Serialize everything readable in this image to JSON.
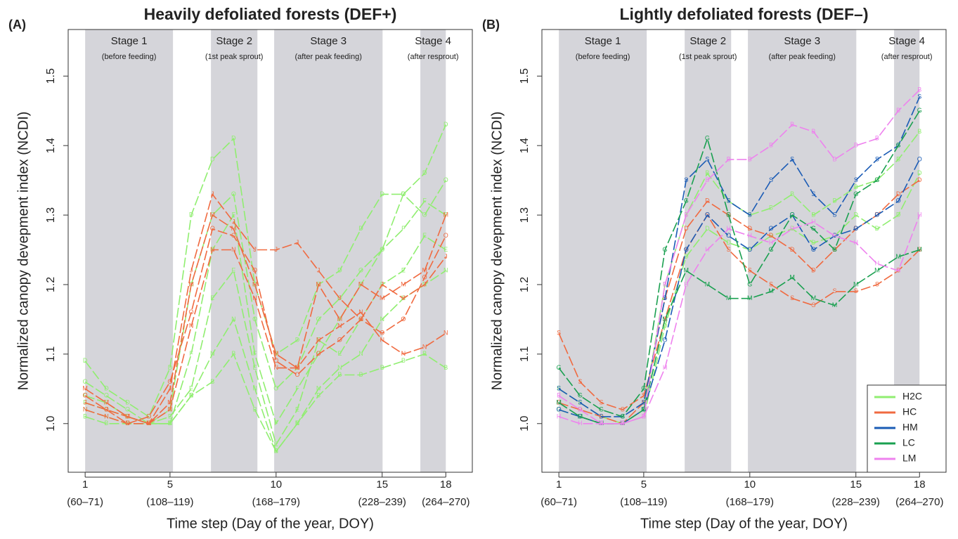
{
  "chart_data": [
    {
      "type": "line",
      "panel": "(A)",
      "title": "Heavily defoliated forests (DEF+)",
      "xlabel": "Time step (Day of the year, DOY)",
      "ylabel": "Normalized canopy devepment index (NCDI)",
      "x": [
        1,
        2,
        3,
        4,
        5,
        6,
        7,
        8,
        9,
        10,
        11,
        12,
        13,
        14,
        15,
        16,
        17,
        18
      ],
      "xlim": [
        0.2,
        19.25
      ],
      "ylim": [
        0.93,
        1.567
      ],
      "xticks": [
        1,
        5,
        10,
        15,
        18
      ],
      "xtick_sublabels": [
        "(60–71)",
        "(108–119)",
        "(168–179)",
        "(228–239)",
        "(264–270)"
      ],
      "yticks": [
        {
          "value": 1.0,
          "label": "1.0"
        },
        {
          "value": 1.1,
          "label": "1.1"
        },
        {
          "value": 1.2,
          "label": "1.2"
        },
        {
          "value": 1.3,
          "label": "1.3"
        },
        {
          "value": 1.4,
          "label": "1.4"
        },
        {
          "value": 1.5,
          "label": "1.5"
        }
      ],
      "stage_color": "#d5d5da",
      "stages": [
        {
          "label": "Stage 1",
          "note": "(before feeding)",
          "start": 1,
          "end": 5.14
        },
        {
          "label": "Stage 2",
          "note": "(1st peak sprout)",
          "start": 6.93,
          "end": 9.12
        },
        {
          "label": "Stage 3",
          "note": "(after peak feeding)",
          "start": 9.91,
          "end": 15.02
        },
        {
          "label": "Stage 4",
          "note": "(after resprout)",
          "start": 16.8,
          "end": 18
        }
      ],
      "series": [
        {
          "name": "H2C",
          "color": "#90ee70",
          "lines": [
            {
              "site": "D",
              "values": [
                1.09,
                1.05,
                1.03,
                1.01,
                1.08,
                1.3,
                1.38,
                1.41,
                1.2,
                1.1,
                1.12,
                1.2,
                1.22,
                1.28,
                1.33,
                1.33,
                1.36,
                1.43
              ]
            },
            {
              "site": "O",
              "values": [
                1.06,
                1.04,
                1.02,
                1.0,
                1.02,
                1.2,
                1.3,
                1.33,
                1.15,
                1.05,
                1.08,
                1.15,
                1.18,
                1.22,
                1.25,
                1.33,
                1.3,
                1.35
              ]
            },
            {
              "site": "F",
              "values": [
                1.04,
                1.03,
                1.01,
                1.0,
                1.0,
                1.1,
                1.25,
                1.3,
                1.1,
                1.0,
                1.05,
                1.1,
                1.15,
                1.2,
                1.25,
                1.28,
                1.32,
                1.3
              ]
            },
            {
              "site": "E",
              "values": [
                1.03,
                1.02,
                1.01,
                1.0,
                1.01,
                1.05,
                1.18,
                1.22,
                1.08,
                0.97,
                1.02,
                1.12,
                1.1,
                1.15,
                1.2,
                1.22,
                1.27,
                1.25
              ]
            },
            {
              "site": "N",
              "values": [
                1.02,
                1.01,
                1.0,
                1.0,
                1.0,
                1.04,
                1.1,
                1.15,
                1.05,
                0.96,
                1.0,
                1.05,
                1.08,
                1.1,
                1.15,
                1.18,
                1.2,
                1.22
              ]
            },
            {
              "site": "B",
              "values": [
                1.01,
                1.0,
                1.0,
                1.0,
                1.0,
                1.04,
                1.06,
                1.1,
                1.02,
                0.96,
                1.0,
                1.04,
                1.07,
                1.07,
                1.08,
                1.09,
                1.1,
                1.08
              ]
            }
          ]
        },
        {
          "name": "HC",
          "color": "#f06a40",
          "lines": [
            {
              "site": "M",
              "values": [
                1.05,
                1.03,
                1.01,
                1.0,
                1.03,
                1.2,
                1.3,
                1.28,
                1.2,
                1.1,
                1.08,
                1.2,
                1.15,
                1.2,
                1.18,
                1.2,
                1.22,
                1.3
              ]
            },
            {
              "site": "J",
              "values": [
                1.03,
                1.02,
                1.01,
                1.0,
                1.05,
                1.22,
                1.33,
                1.29,
                1.25,
                1.25,
                1.26,
                1.22,
                1.18,
                1.15,
                1.2,
                1.18,
                1.2,
                1.24
              ]
            },
            {
              "site": "O",
              "values": [
                1.04,
                1.02,
                1.0,
                1.01,
                1.06,
                1.16,
                1.28,
                1.27,
                1.22,
                1.09,
                1.07,
                1.1,
                1.12,
                1.15,
                1.13,
                1.15,
                1.21,
                1.27
              ]
            },
            {
              "site": "N",
              "values": [
                1.02,
                1.01,
                1.0,
                1.0,
                1.02,
                1.14,
                1.25,
                1.25,
                1.18,
                1.08,
                1.08,
                1.12,
                1.14,
                1.16,
                1.12,
                1.1,
                1.11,
                1.13
              ]
            }
          ]
        }
      ]
    },
    {
      "type": "line",
      "panel": "(B)",
      "title": "Lightly defoliated forests (DEF–)",
      "xlabel": "Time step (Day of the year, DOY)",
      "ylabel": "Normalized canopy devepment index (NCDI)",
      "x": [
        1,
        2,
        3,
        4,
        5,
        6,
        7,
        8,
        9,
        10,
        11,
        12,
        13,
        14,
        15,
        16,
        17,
        18
      ],
      "xlim": [
        0.2,
        19.25
      ],
      "ylim": [
        0.93,
        1.567
      ],
      "xticks": [
        1,
        5,
        10,
        15,
        18
      ],
      "xtick_sublabels": [
        "(60–71)",
        "(108–119)",
        "(168–179)",
        "(228–239)",
        "(264–270)"
      ],
      "yticks": [
        {
          "value": 1.0,
          "label": "1.0"
        },
        {
          "value": 1.1,
          "label": "1.1"
        },
        {
          "value": 1.2,
          "label": "1.2"
        },
        {
          "value": 1.3,
          "label": "1.3"
        },
        {
          "value": 1.4,
          "label": "1.4"
        },
        {
          "value": 1.5,
          "label": "1.5"
        }
      ],
      "stage_color": "#d5d5da",
      "stages": [
        {
          "label": "Stage 1",
          "note": "(before feeding)",
          "start": 1,
          "end": 5.14
        },
        {
          "label": "Stage 2",
          "note": "(1st peak sprout)",
          "start": 6.93,
          "end": 9.12
        },
        {
          "label": "Stage 3",
          "note": "(after peak feeding)",
          "start": 9.91,
          "end": 15.02
        },
        {
          "label": "Stage 4",
          "note": "(after resprout)",
          "start": 16.8,
          "end": 18
        }
      ],
      "legend": "bottom-right",
      "series": [
        {
          "name": "H2C",
          "color": "#90ee70",
          "lines": [
            {
              "site": "B",
              "values": [
                1.05,
                1.03,
                1.01,
                1.0,
                1.02,
                1.2,
                1.3,
                1.36,
                1.32,
                1.3,
                1.31,
                1.33,
                1.3,
                1.32,
                1.34,
                1.35,
                1.38,
                1.42
              ]
            },
            {
              "site": "D",
              "values": [
                1.02,
                1.01,
                1.0,
                1.0,
                1.01,
                1.14,
                1.24,
                1.28,
                1.26,
                1.25,
                1.27,
                1.28,
                1.26,
                1.27,
                1.3,
                1.28,
                1.3,
                1.36
              ]
            }
          ]
        },
        {
          "name": "HC",
          "color": "#f06a40",
          "lines": [
            {
              "site": "S",
              "values": [
                1.13,
                1.06,
                1.03,
                1.02,
                1.04,
                1.15,
                1.25,
                1.3,
                1.25,
                1.22,
                1.2,
                1.18,
                1.17,
                1.19,
                1.19,
                1.2,
                1.22,
                1.25
              ]
            },
            {
              "site": "D",
              "values": [
                1.03,
                1.02,
                1.01,
                1.0,
                1.03,
                1.18,
                1.28,
                1.32,
                1.3,
                1.28,
                1.27,
                1.25,
                1.22,
                1.25,
                1.28,
                1.3,
                1.33,
                1.35
              ]
            }
          ]
        },
        {
          "name": "HM",
          "color": "#1a5bb5",
          "lines": [
            {
              "site": "S",
              "values": [
                1.05,
                1.03,
                1.01,
                1.01,
                1.03,
                1.18,
                1.35,
                1.38,
                1.32,
                1.3,
                1.35,
                1.38,
                1.33,
                1.3,
                1.35,
                1.38,
                1.4,
                1.47
              ]
            },
            {
              "site": "O",
              "values": [
                1.02,
                1.01,
                1.0,
                1.0,
                1.02,
                1.12,
                1.25,
                1.3,
                1.27,
                1.25,
                1.28,
                1.3,
                1.25,
                1.27,
                1.28,
                1.3,
                1.32,
                1.38
              ]
            }
          ]
        },
        {
          "name": "LC",
          "color": "#1aa050",
          "lines": [
            {
              "site": "G",
              "values": [
                1.08,
                1.04,
                1.02,
                1.01,
                1.05,
                1.25,
                1.32,
                1.41,
                1.3,
                1.2,
                1.25,
                1.3,
                1.28,
                1.25,
                1.33,
                1.35,
                1.4,
                1.45
              ]
            },
            {
              "site": "M",
              "values": [
                1.03,
                1.01,
                1.0,
                1.0,
                1.02,
                1.15,
                1.22,
                1.2,
                1.18,
                1.18,
                1.19,
                1.21,
                1.18,
                1.17,
                1.2,
                1.22,
                1.24,
                1.25
              ]
            }
          ]
        },
        {
          "name": "LM",
          "color": "#ee82ee",
          "lines": [
            {
              "site": "B",
              "values": [
                1.04,
                1.02,
                1.0,
                1.0,
                1.01,
                1.2,
                1.3,
                1.35,
                1.38,
                1.38,
                1.4,
                1.43,
                1.42,
                1.38,
                1.4,
                1.41,
                1.45,
                1.48
              ]
            },
            {
              "site": "H",
              "values": [
                1.01,
                1.0,
                1.0,
                1.0,
                1.01,
                1.08,
                1.2,
                1.25,
                1.28,
                1.27,
                1.26,
                1.28,
                1.29,
                1.27,
                1.26,
                1.23,
                1.22,
                1.3
              ]
            }
          ]
        }
      ]
    }
  ]
}
